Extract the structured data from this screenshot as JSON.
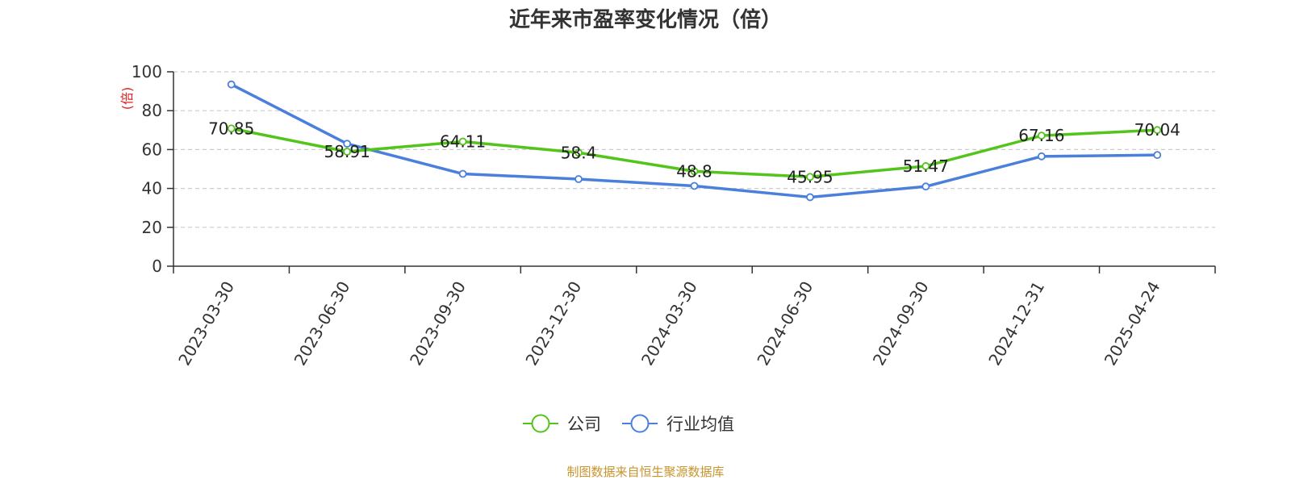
{
  "chart_data": {
    "type": "line",
    "title": "近年来市盈率变化情况（倍）",
    "ylabel": "(倍)",
    "xlabel": "",
    "ylim": [
      0,
      100
    ],
    "yticks": [
      0,
      20,
      40,
      60,
      80,
      100
    ],
    "grid": true,
    "legend_position": "bottom",
    "categories": [
      "2023-03-30",
      "2023-06-30",
      "2023-09-30",
      "2023-12-30",
      "2024-03-30",
      "2024-06-30",
      "2024-09-30",
      "2024-12-31",
      "2025-04-24"
    ],
    "series": [
      {
        "name": "公司",
        "color": "#52c41a",
        "values": [
          70.85,
          58.91,
          64.11,
          58.4,
          48.8,
          45.95,
          51.47,
          67.16,
          70.04
        ],
        "labels": [
          "70.85",
          "58.91",
          "64.11",
          "58.4",
          "48.8",
          "45.95",
          "51.47",
          "67.16",
          "70.04"
        ]
      },
      {
        "name": "行业均值",
        "color": "#4a7fdb",
        "values": [
          93.5,
          63.0,
          47.5,
          44.8,
          41.3,
          35.5,
          41.0,
          56.5,
          57.2
        ]
      }
    ],
    "source": "制图数据来自恒生聚源数据库"
  }
}
